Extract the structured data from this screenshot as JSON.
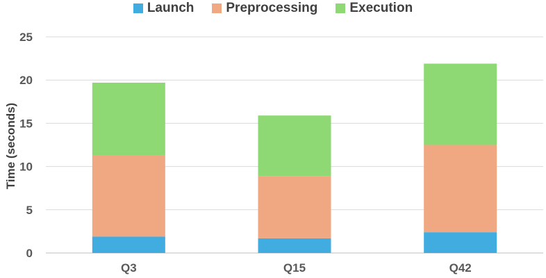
{
  "chart_data": {
    "type": "bar",
    "stacked": true,
    "categories": [
      "Q3",
      "Q15",
      "Q42"
    ],
    "series": [
      {
        "name": "Launch",
        "values": [
          1.9,
          1.7,
          2.4
        ],
        "color": "#41ACE0"
      },
      {
        "name": "Preprocessing",
        "values": [
          9.4,
          7.2,
          10.1
        ],
        "color": "#F0A882"
      },
      {
        "name": "Execution",
        "values": [
          8.4,
          7.0,
          9.4
        ],
        "color": "#8ED973"
      }
    ],
    "title": "",
    "xlabel": "",
    "ylabel": "Time (seconds)",
    "ylim": [
      0,
      25
    ],
    "yticks": [
      "0",
      "5",
      "10",
      "15",
      "20",
      "25"
    ],
    "grid": true,
    "legend_position": "top"
  }
}
